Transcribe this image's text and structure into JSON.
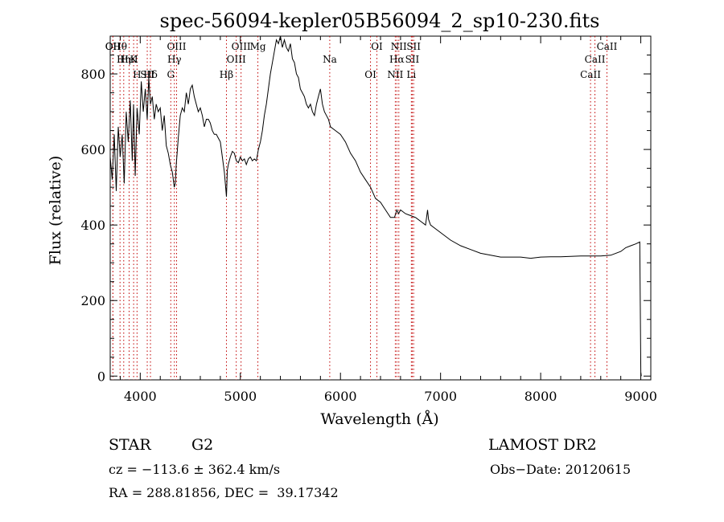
{
  "chart_data": {
    "type": "line",
    "title": "spec-56094-kepler05B56094_2_sp10-230.fits",
    "xlabel": "Wavelength (Å)",
    "ylabel": "Flux (relative)",
    "xlim": [
      3700,
      9100
    ],
    "ylim": [
      -10,
      900
    ],
    "x_ticks": [
      4000,
      5000,
      6000,
      7000,
      8000,
      9000
    ],
    "y_ticks": [
      0,
      200,
      400,
      600,
      800
    ],
    "grid": false,
    "series": [
      {
        "x": [
          3700,
          3720,
          3740,
          3760,
          3780,
          3800,
          3820,
          3840,
          3860,
          3880,
          3900,
          3920,
          3933,
          3950,
          3968,
          3990,
          4010,
          4030,
          4050,
          4070,
          4085,
          4102,
          4120,
          4140,
          4160,
          4180,
          4200,
          4220,
          4240,
          4260,
          4280,
          4300,
          4320,
          4330,
          4340,
          4350,
          4360,
          4380,
          4400,
          4420,
          4440,
          4460,
          4480,
          4500,
          4520,
          4540,
          4560,
          4580,
          4600,
          4620,
          4640,
          4660,
          4680,
          4700,
          4720,
          4740,
          4760,
          4780,
          4800,
          4820,
          4840,
          4850,
          4861,
          4870,
          4880,
          4900,
          4920,
          4940,
          4960,
          4980,
          5000,
          5020,
          5040,
          5060,
          5080,
          5100,
          5120,
          5140,
          5160,
          5180,
          5200,
          5220,
          5240,
          5260,
          5280,
          5300,
          5320,
          5340,
          5360,
          5380,
          5400,
          5420,
          5440,
          5460,
          5480,
          5500,
          5520,
          5540,
          5560,
          5580,
          5600,
          5620,
          5640,
          5660,
          5680,
          5700,
          5720,
          5740,
          5760,
          5780,
          5800,
          5820,
          5840,
          5860,
          5880,
          5900,
          5950,
          6000,
          6050,
          6100,
          6150,
          6200,
          6250,
          6300,
          6350,
          6400,
          6450,
          6500,
          6540,
          6563,
          6580,
          6600,
          6650,
          6700,
          6750,
          6800,
          6850,
          6870,
          6880,
          6900,
          6950,
          7000,
          7100,
          7200,
          7300,
          7400,
          7500,
          7600,
          7700,
          7800,
          7900,
          8000,
          8100,
          8200,
          8300,
          8400,
          8500,
          8600,
          8700,
          8800,
          8850,
          8900,
          8950,
          8990,
          9000,
          9005
        ],
        "y": [
          580,
          520,
          640,
          490,
          660,
          580,
          640,
          510,
          700,
          620,
          730,
          570,
          720,
          530,
          710,
          640,
          780,
          700,
          760,
          680,
          790,
          720,
          740,
          680,
          720,
          700,
          710,
          650,
          690,
          610,
          590,
          560,
          540,
          520,
          500,
          510,
          560,
          630,
          690,
          710,
          700,
          750,
          720,
          760,
          770,
          740,
          720,
          700,
          710,
          690,
          660,
          680,
          680,
          670,
          650,
          640,
          640,
          630,
          620,
          580,
          540,
          510,
          475,
          545,
          560,
          580,
          595,
          590,
          570,
          565,
          580,
          570,
          575,
          560,
          575,
          580,
          570,
          575,
          570,
          600,
          620,
          650,
          690,
          720,
          760,
          800,
          830,
          860,
          890,
          880,
          900,
          870,
          890,
          870,
          860,
          880,
          840,
          830,
          800,
          790,
          760,
          750,
          740,
          720,
          710,
          720,
          700,
          690,
          720,
          740,
          760,
          720,
          700,
          690,
          680,
          660,
          650,
          640,
          620,
          590,
          570,
          540,
          520,
          500,
          470,
          460,
          440,
          420,
          420,
          440,
          430,
          440,
          430,
          425,
          420,
          410,
          400,
          440,
          415,
          400,
          390,
          380,
          360,
          345,
          335,
          325,
          320,
          315,
          315,
          315,
          312,
          315,
          316,
          316,
          317,
          318,
          318,
          318,
          320,
          330,
          340,
          345,
          350,
          355,
          10,
          0
        ]
      }
    ],
    "lines": [
      {
        "label": "Hθ",
        "x": 3798
      },
      {
        "label": "K",
        "x": 3934
      },
      {
        "label": "Hδ",
        "x": 4102
      },
      {
        "label": "OII",
        "x": 3727
      },
      {
        "label": "HeI",
        "x": 3889
      },
      {
        "label": "SII",
        "x": 4070
      },
      {
        "label": "OII",
        "x": 3727
      },
      {
        "label": "Hη",
        "x": 3835
      },
      {
        "label": "H",
        "x": 3968
      },
      {
        "label": "OIII",
        "x": 4363
      },
      {
        "label": "Hγ",
        "x": 4341
      },
      {
        "label": "G",
        "x": 4305
      },
      {
        "label": "OIII",
        "x": 5007
      },
      {
        "label": "OIII",
        "x": 4959
      },
      {
        "label": "Hβ",
        "x": 4861
      },
      {
        "label": "Mg",
        "x": 5175
      },
      {
        "label": "Na",
        "x": 5893
      },
      {
        "label": "OI",
        "x": 6300
      },
      {
        "label": "OI",
        "x": 6364
      },
      {
        "label": "Hα",
        "x": 6563
      },
      {
        "label": "NII",
        "x": 6548
      },
      {
        "label": "NII",
        "x": 6583
      },
      {
        "label": "SII",
        "x": 6717
      },
      {
        "label": "Li",
        "x": 6708
      },
      {
        "label": "SII",
        "x": 6731
      },
      {
        "label": "CaII",
        "x": 8542
      },
      {
        "label": "CaII",
        "x": 8498
      },
      {
        "label": "CaII",
        "x": 8662
      }
    ]
  },
  "info": {
    "object_type": "STAR",
    "subclass": "G2",
    "survey": "LAMOST DR2",
    "cz": "cz = −113.6 ± 362.4 km/s",
    "obs_date": "Obs−Date: 20120615",
    "coords": "RA = 288.81856, DEC =  39.17342"
  }
}
